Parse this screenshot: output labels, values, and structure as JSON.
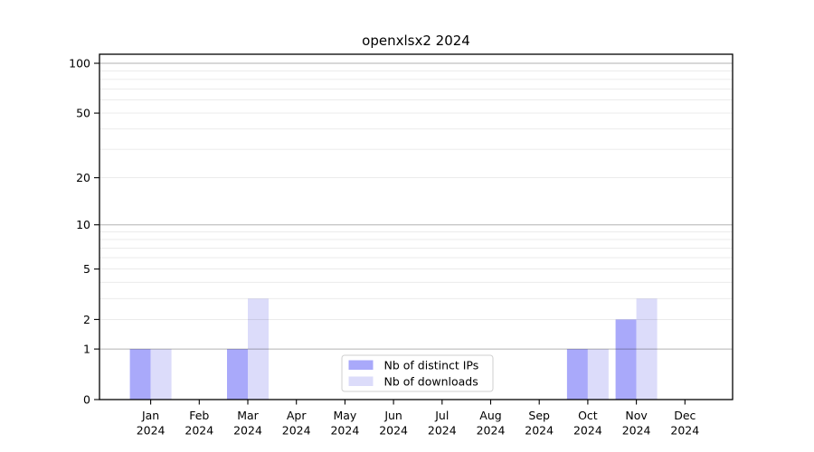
{
  "chart_data": {
    "type": "bar",
    "title": "openxlsx2 2024",
    "x": {
      "months": [
        "Jan",
        "Feb",
        "Mar",
        "Apr",
        "May",
        "Jun",
        "Jul",
        "Aug",
        "Sep",
        "Oct",
        "Nov",
        "Dec"
      ],
      "year": "2024"
    },
    "series": [
      {
        "name": "Nb of distinct IPs",
        "color": "#a9a9fa",
        "values": [
          1,
          0,
          1,
          0,
          0,
          0,
          0,
          0,
          0,
          1,
          2,
          0
        ]
      },
      {
        "name": "Nb of downloads",
        "color": "#dcdcfa",
        "values": [
          1,
          0,
          3,
          0,
          0,
          0,
          0,
          0,
          0,
          1,
          3,
          0
        ]
      }
    ],
    "yscale": "log1p",
    "ylim": [
      0,
      113
    ],
    "yticks": [
      0,
      1,
      2,
      5,
      10,
      20,
      50,
      100
    ],
    "major_gridlines": [
      1,
      10,
      100
    ],
    "minor_gridlines": [
      2,
      3,
      4,
      5,
      6,
      7,
      8,
      9,
      20,
      30,
      40,
      50,
      60,
      70,
      80,
      90
    ],
    "grid": true,
    "legend": {
      "position": "bottom-center"
    }
  },
  "colors": {
    "background": "#ffffff",
    "axis": "#000000",
    "text": "#000000",
    "legend_border": "#cfcfcf"
  }
}
